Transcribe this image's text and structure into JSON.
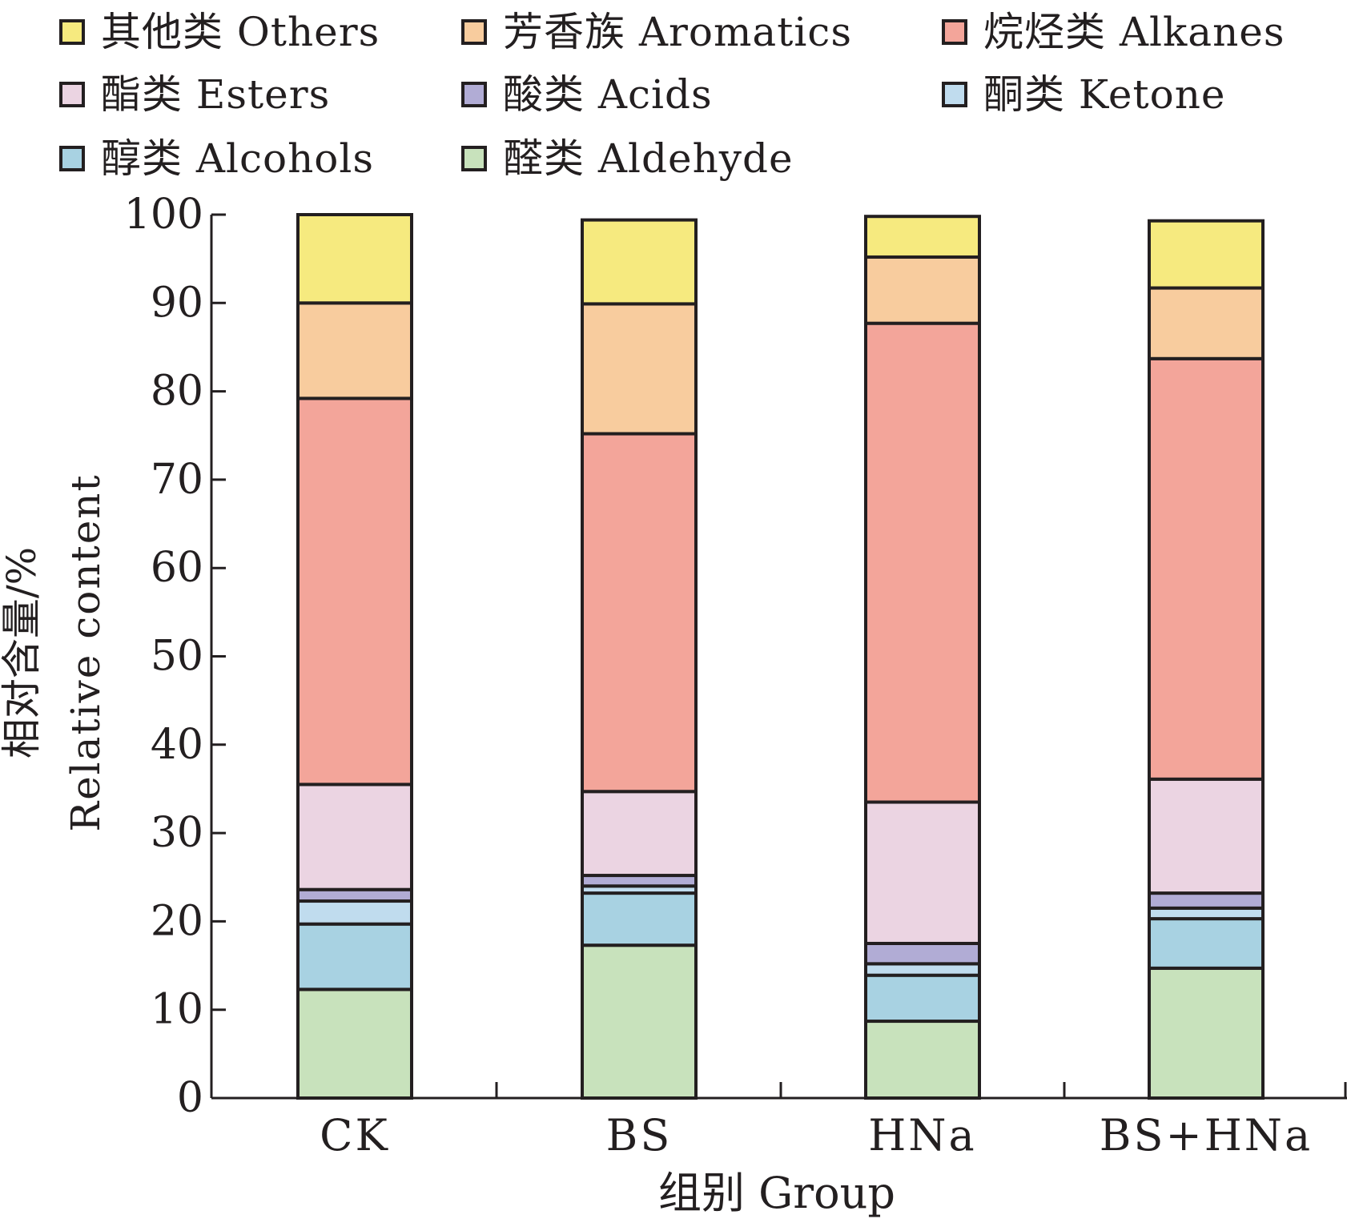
{
  "chart_data": {
    "type": "bar",
    "stacked": true,
    "categories": [
      "CK",
      "BS",
      "HNa",
      "BS+HNa"
    ],
    "xlabel": "组别 Group",
    "ylabel_cn": "相对含量/%",
    "ylabel_en": "Relative content",
    "ylim": [
      0,
      100
    ],
    "yticks": [
      "0",
      "10",
      "20",
      "30",
      "40",
      "50",
      "60",
      "70",
      "80",
      "90",
      "100"
    ],
    "series": [
      {
        "name": "醛类 Aldehyde",
        "color": "#c8e2bc",
        "values": [
          12.3,
          17.3,
          8.7,
          14.7
        ]
      },
      {
        "name": "醇类 Alcohols",
        "color": "#a8d2e2",
        "values": [
          7.4,
          5.9,
          5.2,
          5.6
        ]
      },
      {
        "name": "酮类 Ketone",
        "color": "#c0dcee",
        "values": [
          2.6,
          0.8,
          1.3,
          1.2
        ]
      },
      {
        "name": "酸类 Acids",
        "color": "#b1acd5",
        "values": [
          1.3,
          1.2,
          2.3,
          1.7
        ]
      },
      {
        "name": "酯类 Esters",
        "color": "#ebd4e2",
        "values": [
          11.9,
          9.5,
          16.0,
          12.9
        ]
      },
      {
        "name": "烷烃类 Alkanes",
        "color": "#f3a59a",
        "values": [
          43.7,
          40.5,
          54.2,
          47.6
        ]
      },
      {
        "name": "芳香族 Aromatics",
        "color": "#f8cc9e",
        "values": [
          10.8,
          14.7,
          7.5,
          8.0
        ]
      },
      {
        "name": "其他类 Others",
        "color": "#f6ea7f",
        "values": [
          10.0,
          9.5,
          4.6,
          7.6
        ]
      }
    ],
    "legend": {
      "placement": "top",
      "rows": [
        [
          "其他类 Others",
          "芳香族 Aromatics",
          "烷烃类 Alkanes"
        ],
        [
          "酯类 Esters",
          "酸类 Acids",
          "酮类 Ketone"
        ],
        [
          "醇类 Alcohols",
          "醛类 Aldehyde"
        ]
      ]
    }
  }
}
